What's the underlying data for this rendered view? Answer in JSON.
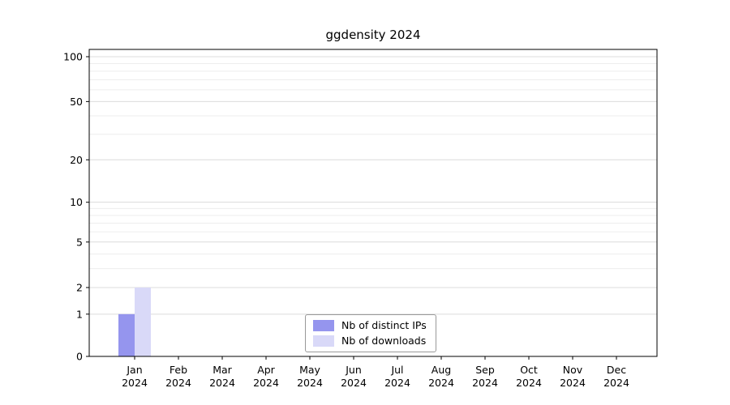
{
  "title": "ggdensity 2024",
  "chart_data": {
    "type": "bar",
    "title": "ggdensity 2024",
    "categories": [
      "Jan",
      "Feb",
      "Mar",
      "Apr",
      "May",
      "Jun",
      "Jul",
      "Aug",
      "Sep",
      "Oct",
      "Nov",
      "Dec"
    ],
    "x_tick_line2": "2024",
    "series": [
      {
        "name": "Nb of distinct IPs",
        "color": "#9595ee",
        "values": [
          1,
          0,
          0,
          0,
          0,
          0,
          0,
          0,
          0,
          0,
          0,
          0
        ]
      },
      {
        "name": "Nb of downloads",
        "color": "#d9d9f8",
        "values": [
          2,
          0,
          0,
          0,
          0,
          0,
          0,
          0,
          0,
          0,
          0,
          0
        ]
      }
    ],
    "scale": "log10(value+1)",
    "ylim": [
      0,
      100
    ],
    "yticks": [
      0,
      1,
      2,
      5,
      10,
      20,
      50,
      100
    ],
    "gridlines": [
      1,
      2,
      3,
      4,
      5,
      6,
      7,
      8,
      9,
      10,
      20,
      30,
      40,
      50,
      60,
      70,
      80,
      90,
      100
    ],
    "grid": "horizontal",
    "legend_position": "inside-bottom-center",
    "colors": {
      "axis": "#000000",
      "grid_minor": "#ededed",
      "grid_major": "#dcdcdc",
      "legend_border": "#999999",
      "background": "#ffffff"
    }
  }
}
